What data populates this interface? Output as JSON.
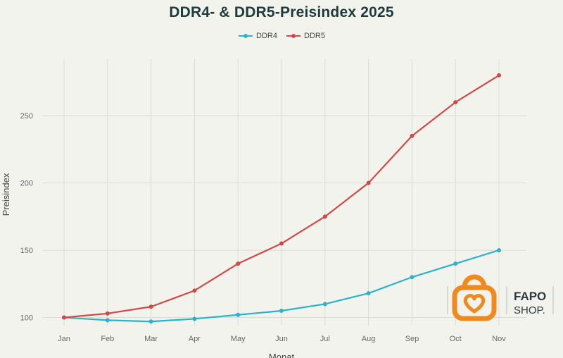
{
  "chart_data": {
    "type": "line",
    "title": "DDR4- & DDR5-Preisindex 2025",
    "xlabel": "Monat",
    "ylabel": "Preisindex",
    "categories": [
      "Jan",
      "Feb",
      "Mar",
      "Apr",
      "May",
      "Jun",
      "Jul",
      "Aug",
      "Sep",
      "Oct",
      "Nov"
    ],
    "series": [
      {
        "name": "DDR4",
        "color": "#2bb3c8",
        "values": [
          100,
          98,
          97,
          99,
          102,
          105,
          110,
          118,
          130,
          140,
          150
        ]
      },
      {
        "name": "DDR5",
        "color": "#cf4a45",
        "values": [
          100,
          103,
          108,
          120,
          140,
          155,
          175,
          200,
          235,
          260,
          280
        ]
      }
    ],
    "ylim": [
      94,
      292
    ],
    "yticks": [
      100,
      150,
      200,
      250
    ],
    "grid": true,
    "legend_position": "top-center"
  },
  "watermark": {
    "brand_top": "FAPO",
    "brand_bottom": "SHOP.",
    "color": "#f08a1c"
  }
}
